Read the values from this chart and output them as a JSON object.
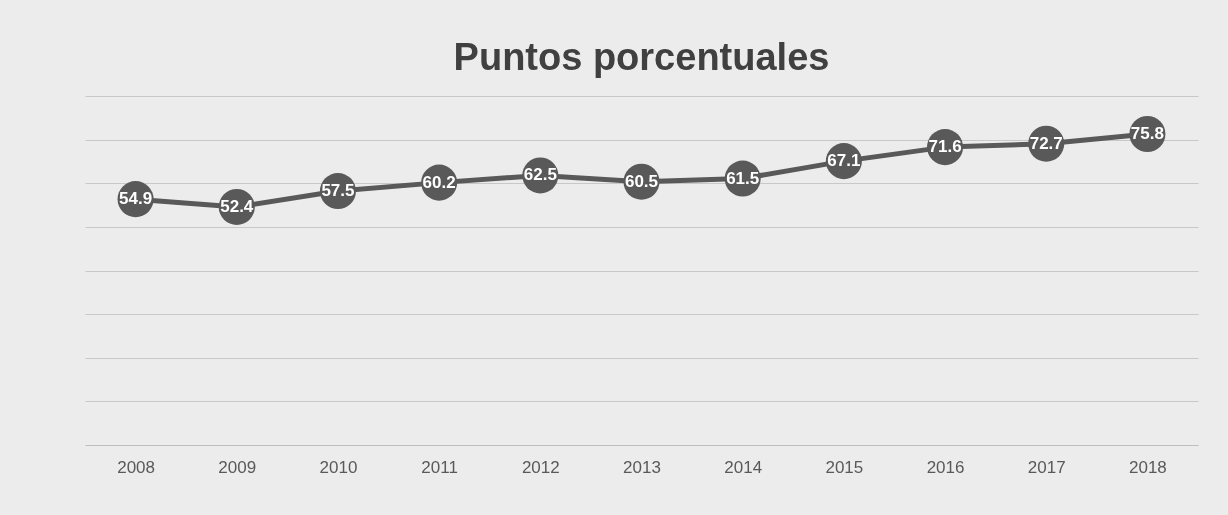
{
  "chart_data": {
    "type": "line",
    "title": "Puntos porcentuales",
    "categories": [
      "2008",
      "2009",
      "2010",
      "2011",
      "2012",
      "2013",
      "2014",
      "2015",
      "2016",
      "2017",
      "2018"
    ],
    "series": [
      {
        "color": "#595959",
        "values": [
          54.9,
          52.4,
          57.5,
          60.2,
          62.5,
          60.5,
          61.5,
          67.1,
          71.6,
          72.7,
          75.8
        ]
      }
    ],
    "ylim": [
      -24,
      88
    ],
    "yticks": [
      {
        "value": -24,
        "label": null
      },
      {
        "value": -10,
        "label": null
      },
      {
        "value": 4,
        "label": null
      },
      {
        "value": 18,
        "label": null
      },
      {
        "value": 32,
        "label": null
      },
      {
        "value": 46,
        "label": null
      },
      {
        "value": 60,
        "label": null
      },
      {
        "value": 74,
        "label": null
      },
      {
        "value": 88,
        "label": null
      }
    ],
    "grid": "y",
    "tick_labels": "x",
    "marker": "circle",
    "data_labels": true
  }
}
